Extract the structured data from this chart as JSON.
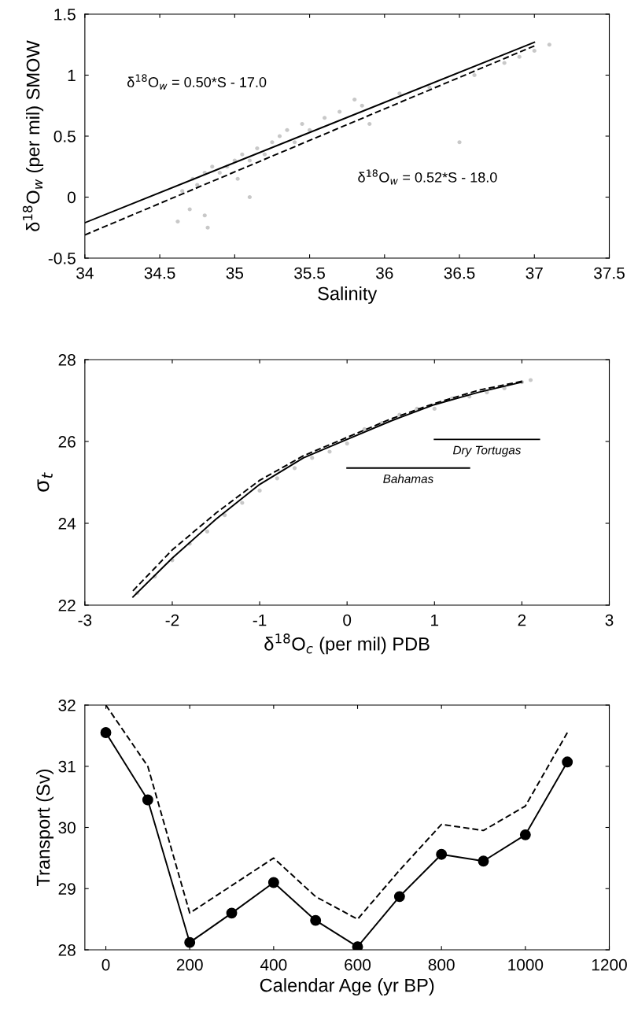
{
  "chart_data": [
    {
      "type": "scatter",
      "xlabel": "Salinity",
      "ylabel": "δ$^{18}$O$_{w}$ (per mil) SMOW",
      "xlim": [
        34,
        37.5
      ],
      "xticks": [
        34,
        34.5,
        35,
        35.5,
        36,
        36.5,
        37,
        37.5
      ],
      "ylim": [
        -0.5,
        1.5
      ],
      "yticks": [
        -0.5,
        0,
        0.5,
        1,
        1.5
      ],
      "grid": false,
      "annotations": [
        "δ$^{18}$O$_{w}$ = 0.50*S - 17.0",
        "δ$^{18}$O$_{w}$ = 0.52*S - 18.0"
      ],
      "series": [
        {
          "type": "scatter",
          "color": "#c8c8c8",
          "marker": "circle",
          "x": [
            34.62,
            34.65,
            34.7,
            34.72,
            34.75,
            34.8,
            34.82,
            34.85,
            34.9,
            34.95,
            35.0,
            35.02,
            35.05,
            35.1,
            35.15,
            35.2,
            35.25,
            35.3,
            35.35,
            35.4,
            35.45,
            35.5,
            35.6,
            35.7,
            35.8,
            35.85,
            35.9,
            36.1,
            36.3,
            36.5,
            36.6,
            36.8,
            36.9,
            37.0,
            37.1,
            34.8,
            35.1,
            35.9
          ],
          "values": [
            -0.2,
            0.05,
            -0.1,
            0.15,
            0.1,
            0.2,
            -0.25,
            0.25,
            0.2,
            0.25,
            0.3,
            0.15,
            0.35,
            0.3,
            0.4,
            0.35,
            0.45,
            0.5,
            0.55,
            0.45,
            0.6,
            0.55,
            0.65,
            0.7,
            0.8,
            0.75,
            0.6,
            0.85,
            0.9,
            0.45,
            1.0,
            1.1,
            1.15,
            1.2,
            1.25,
            -0.15,
            0.0,
            0.2
          ]
        },
        {
          "type": "line",
          "color": "#000000",
          "line_style": "solid",
          "x": [
            34,
            37
          ],
          "values": [
            -0.21,
            1.27
          ]
        },
        {
          "type": "line",
          "color": "#000000",
          "line_style": "dashed",
          "x": [
            34,
            37
          ],
          "values": [
            -0.31,
            1.24
          ]
        }
      ]
    },
    {
      "type": "scatter",
      "xlabel": "δ$^{18}$O$_{c}$ (per mil) PDB",
      "ylabel": "σ$_{t}$",
      "xlim": [
        -3,
        3
      ],
      "xticks": [
        -3,
        -2,
        -1,
        0,
        1,
        2,
        3
      ],
      "ylim": [
        22,
        28
      ],
      "yticks": [
        22,
        24,
        26,
        28
      ],
      "grid": false,
      "series": [
        {
          "type": "scatter",
          "color": "#c8c8c8",
          "marker": "circle",
          "x": [
            -2.4,
            -2.2,
            -2.0,
            -1.8,
            -1.6,
            -1.4,
            -1.2,
            -1.0,
            -0.8,
            -0.6,
            -0.4,
            -0.2,
            0.0,
            0.2,
            0.4,
            0.6,
            0.8,
            1.0,
            1.2,
            1.4,
            1.6,
            1.8,
            2.0,
            2.1
          ],
          "values": [
            22.3,
            22.7,
            23.1,
            23.5,
            23.8,
            24.2,
            24.5,
            24.8,
            25.1,
            25.35,
            25.6,
            25.75,
            25.95,
            26.3,
            26.45,
            26.65,
            26.8,
            26.8,
            27.05,
            27.1,
            27.2,
            27.3,
            27.45,
            27.5
          ]
        },
        {
          "type": "line",
          "color": "#000000",
          "line_style": "solid",
          "x": [
            -2.45,
            -2.0,
            -1.5,
            -1.0,
            -0.5,
            0.0,
            0.5,
            1.0,
            1.5,
            2.0
          ],
          "values": [
            22.2,
            23.15,
            24.1,
            24.95,
            25.6,
            26.05,
            26.5,
            26.9,
            27.2,
            27.45
          ]
        },
        {
          "type": "line",
          "color": "#000000",
          "line_style": "dashed",
          "x": [
            -2.45,
            -2.0,
            -1.5,
            -1.0,
            -0.5,
            0.0,
            0.5,
            1.0,
            1.5,
            2.0
          ],
          "values": [
            22.35,
            23.35,
            24.25,
            25.05,
            25.65,
            26.1,
            26.55,
            26.93,
            27.25,
            27.47
          ]
        },
        {
          "type": "line",
          "name": "Dry Tortugas",
          "color": "#000000",
          "line_style": "solid",
          "x": [
            1.0,
            2.2
          ],
          "values": [
            26.05,
            26.05
          ]
        },
        {
          "type": "line",
          "name": "Bahamas",
          "color": "#000000",
          "line_style": "solid",
          "x": [
            0.0,
            1.4
          ],
          "values": [
            25.35,
            25.35
          ]
        }
      ]
    },
    {
      "type": "line",
      "xlabel": "Calendar Age (yr BP)",
      "ylabel": "Transport (Sv)",
      "x": [
        0,
        100,
        200,
        300,
        400,
        500,
        600,
        700,
        800,
        900,
        1000,
        1100
      ],
      "xlim": [
        -50,
        1200
      ],
      "xticks": [
        0,
        200,
        400,
        600,
        800,
        1000,
        1200
      ],
      "ylim": [
        28,
        32
      ],
      "yticks": [
        28,
        29,
        30,
        31,
        32
      ],
      "grid": false,
      "series": [
        {
          "color": "#000000",
          "line_style": "solid",
          "marker": "circle",
          "values": [
            31.55,
            30.45,
            28.12,
            28.6,
            29.1,
            28.48,
            28.05,
            28.87,
            29.56,
            29.45,
            29.88,
            31.07
          ]
        },
        {
          "color": "#000000",
          "line_style": "dashed",
          "marker": "none",
          "values": [
            32.0,
            31.0,
            28.6,
            29.05,
            29.5,
            28.87,
            28.5,
            29.3,
            30.05,
            29.95,
            30.35,
            31.55
          ]
        }
      ]
    }
  ]
}
